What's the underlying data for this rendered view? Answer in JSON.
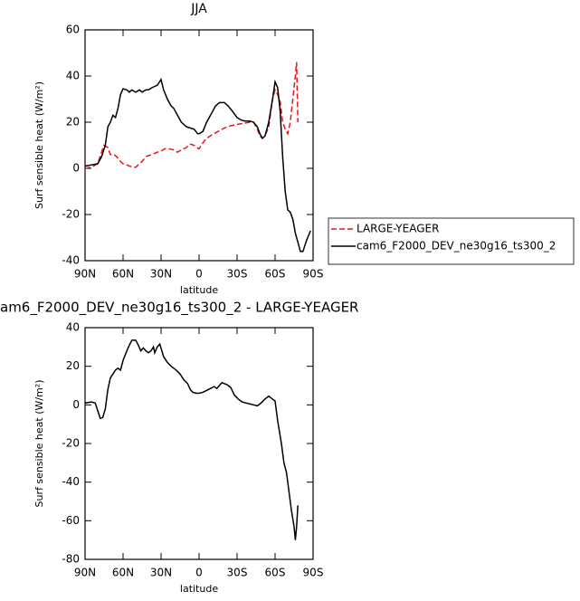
{
  "chart_data": [
    {
      "type": "line",
      "title": "JJA",
      "xlabel": "latitude",
      "ylabel": "Surf sensible heat (W/m²)",
      "xlim": [
        90,
        -90
      ],
      "ylim": [
        -40,
        60
      ],
      "xticks": [
        {
          "value": 90,
          "label": "90N"
        },
        {
          "value": 60,
          "label": "60N"
        },
        {
          "value": 30,
          "label": "30N"
        },
        0,
        {
          "value": -30,
          "label": "30S"
        },
        {
          "value": -60,
          "label": "60S"
        },
        {
          "value": -90,
          "label": "90S"
        }
      ],
      "yticks": [
        -40,
        -20,
        0,
        20,
        40,
        60
      ],
      "legend": "outside-right",
      "series": [
        {
          "name": "LARGE-YEAGER",
          "color": "#e8161a",
          "dash": true,
          "x": [
            90,
            85,
            80,
            77,
            75,
            72,
            70,
            67,
            65,
            62,
            60,
            57,
            55,
            52,
            50,
            47,
            45,
            42,
            40,
            37,
            33,
            30,
            27,
            24,
            20,
            17,
            14,
            10,
            7,
            4,
            2,
            0,
            -3,
            -6,
            -10,
            -15,
            -20,
            -25,
            -30,
            -35,
            -40,
            -43,
            -46,
            -48,
            -50,
            -52,
            -55,
            -58,
            -60,
            -62,
            -64,
            -66,
            -68,
            -70,
            -72,
            -74,
            -76,
            -77,
            -78
          ],
          "values": [
            0,
            0.5,
            2,
            7,
            10,
            9,
            6,
            6,
            5,
            3,
            2,
            1.5,
            1,
            0.5,
            0.5,
            2,
            3,
            5,
            5.5,
            6,
            7,
            7.5,
            8.5,
            8.5,
            8,
            7,
            8,
            9,
            10.5,
            10,
            9,
            8.5,
            11,
            13,
            14.5,
            16,
            17.5,
            18.5,
            19,
            19.5,
            20,
            20,
            17,
            14,
            13,
            14,
            18,
            30,
            34,
            32,
            29,
            20,
            17,
            15,
            20,
            30,
            40,
            46,
            20
          ]
        },
        {
          "name": "cam6_F2000_DEV_ne30g16_ts300_2",
          "color": "#000000",
          "dash": false,
          "x": [
            90,
            85,
            80,
            77,
            74,
            72,
            70,
            68,
            66,
            64,
            62,
            60,
            57,
            55,
            53,
            50,
            47,
            45,
            42,
            40,
            37,
            33,
            30,
            28,
            25,
            22,
            20,
            17,
            14,
            10,
            7,
            4,
            1,
            0,
            -3,
            -6,
            -10,
            -13,
            -16,
            -20,
            -23,
            -26,
            -30,
            -33,
            -36,
            -40,
            -43,
            -46,
            -48,
            -50,
            -52,
            -55,
            -58,
            -60,
            -62,
            -64,
            -66,
            -68,
            -70,
            -72,
            -74,
            -76,
            -78,
            -80,
            -82,
            -85,
            -88
          ],
          "values": [
            1,
            1.5,
            2,
            5,
            10,
            18,
            20,
            23,
            22,
            26,
            32,
            34.5,
            34,
            33,
            34,
            33,
            34,
            33,
            34,
            34,
            35,
            36,
            38.5,
            34,
            30,
            27,
            26,
            23,
            20,
            18,
            17.5,
            17,
            15,
            15,
            16,
            20,
            24,
            27,
            28.5,
            28.5,
            27,
            25,
            22,
            21,
            20.5,
            20.5,
            20,
            18,
            15,
            13,
            14,
            20,
            30,
            37.5,
            35,
            25,
            5,
            -10,
            -18,
            -19,
            -22,
            -28,
            -32,
            -36,
            -36,
            -31,
            -27
          ]
        }
      ]
    },
    {
      "type": "line",
      "title": "am6_F2000_DEV_ne30g16_ts300_2 - LARGE-YEAGER",
      "xlabel": "latitude",
      "ylabel": "Surf sensible heat (W/m²)",
      "xlim": [
        90,
        -90
      ],
      "ylim": [
        -80,
        40
      ],
      "xticks": [
        {
          "value": 90,
          "label": "90N"
        },
        {
          "value": 60,
          "label": "60N"
        },
        {
          "value": 30,
          "label": "30N"
        },
        0,
        {
          "value": -30,
          "label": "30S"
        },
        {
          "value": -60,
          "label": "60S"
        },
        {
          "value": -90,
          "label": "90S"
        }
      ],
      "yticks": [
        -80,
        -60,
        -40,
        -20,
        0,
        20,
        40
      ],
      "series": [
        {
          "color": "#000000",
          "dash": false,
          "x": [
            90,
            85,
            82,
            80,
            78,
            76,
            74,
            72,
            70,
            68,
            66,
            64,
            62,
            60,
            57,
            55,
            53,
            50,
            48,
            46,
            44,
            42,
            40,
            38,
            36,
            35,
            33,
            31,
            28,
            25,
            22,
            18,
            15,
            12,
            9,
            7,
            5,
            2,
            0,
            -3,
            -6,
            -9,
            -12,
            -14,
            -16,
            -18,
            -22,
            -25,
            -28,
            -31,
            -34,
            -37,
            -40,
            -43,
            -46,
            -49,
            -52,
            -55,
            -58,
            -60,
            -62,
            -65,
            -67,
            -69,
            -71,
            -73,
            -75,
            -76,
            -77,
            -78
          ],
          "values": [
            1,
            1.5,
            1,
            -3,
            -7,
            -6.5,
            -2,
            8,
            14,
            16,
            18,
            19,
            18,
            23,
            28,
            31,
            33.5,
            33.5,
            31,
            28,
            29.5,
            28,
            27,
            28,
            30,
            27,
            30,
            31.5,
            25,
            22,
            20,
            18,
            16,
            13,
            11,
            8,
            6.5,
            6,
            6,
            6.5,
            7.5,
            8.5,
            9.5,
            8.5,
            10,
            11.5,
            10.5,
            9,
            5,
            3,
            1.5,
            1,
            0.5,
            0,
            -0.5,
            1,
            3,
            4.5,
            3,
            2,
            -8,
            -20,
            -30,
            -35,
            -45,
            -55,
            -63,
            -70,
            -63,
            -52
          ]
        }
      ]
    }
  ]
}
